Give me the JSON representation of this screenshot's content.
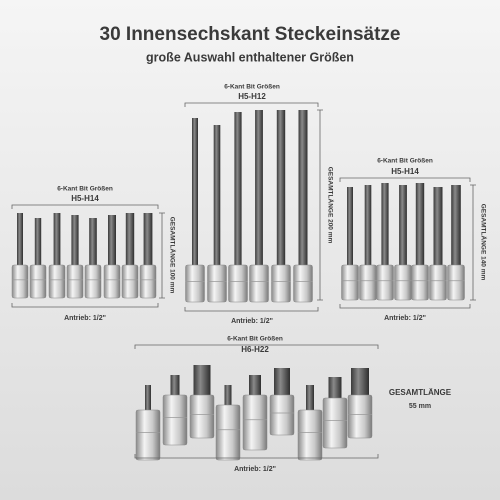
{
  "header": {
    "title": "30 Innensechskant Steckeinsätze",
    "subtitle": "große Auswahl enthaltener Größen"
  },
  "groups": [
    {
      "caption": "6-Kant Bit Größen",
      "sizes": "H5-H14",
      "length": "GESAMTLÄNGE 100 mm",
      "drive": "Antrieb: 1/2\""
    },
    {
      "caption": "6-Kant Bit Größen",
      "sizes": "H5-H12",
      "length": "GESAMTLÄNGE 200 mm",
      "drive": "Antrieb: 1/2\""
    },
    {
      "caption": "6-Kant Bit Größen",
      "sizes": "H5-H14",
      "length": "GESAMTLÄNGE 140 mm",
      "drive": "Antrieb: 1/2\""
    },
    {
      "caption": "6-Kant Bit Größen",
      "sizes": "H6-H22",
      "length": "GESAMTLÄNGE",
      "length_value": "55 mm",
      "drive": "Antrieb: 1/2\""
    }
  ]
}
